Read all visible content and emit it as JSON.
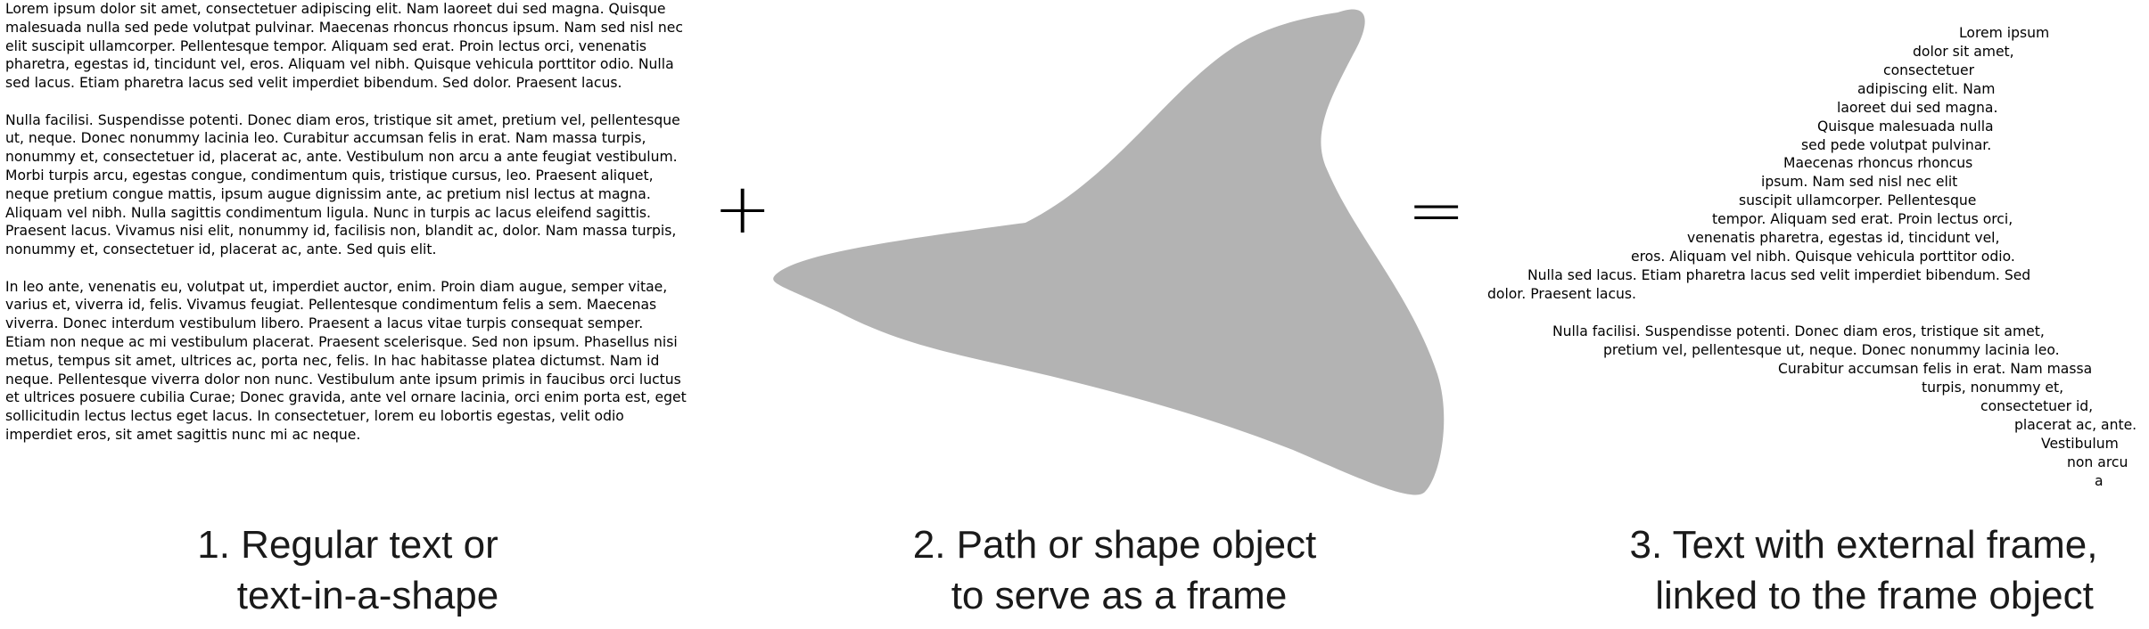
{
  "regular_text": {
    "paragraphs": [
      "Lorem ipsum dolor sit amet, consectetuer adipiscing elit. Nam laoreet dui sed magna. Quisque malesuada nulla sed pede volutpat pulvinar. Maecenas rhoncus rhoncus ipsum. Nam sed nisl nec elit suscipit ullamcorper. Pellentesque tempor. Aliquam sed erat. Proin lectus orci, venenatis pharetra, egestas id, tincidunt vel, eros. Aliquam vel nibh. Quisque vehicula porttitor odio. Nulla sed lacus. Etiam pharetra lacus sed velit imperdiet bibendum. Sed dolor. Praesent lacus.",
      "Nulla facilisi. Suspendisse potenti. Donec diam eros, tristique sit amet, pretium vel, pellentesque ut, neque. Donec nonummy lacinia leo. Curabitur accumsan felis in erat. Nam massa turpis, nonummy et, consectetuer id, placerat ac, ante. Vestibulum non arcu a ante feugiat vestibulum. Morbi turpis arcu, egestas congue, condimentum quis, tristique cursus, leo. Praesent aliquet, neque pretium congue mattis, ipsum augue dignissim ante, ac pretium nisl lectus at magna. Aliquam vel nibh. Nulla sagittis condimentum ligula. Nunc in turpis ac lacus eleifend sagittis. Praesent lacus. Vivamus nisi elit, nonummy id, facilisis non, blandit ac, dolor. Nam massa turpis, nonummy et, consectetuer id, placerat ac, ante. Sed quis elit.",
      "In leo ante, venenatis eu, volutpat ut, imperdiet auctor, enim. Proin diam augue, semper vitae, varius et, viverra id, felis. Vivamus feugiat. Pellentesque condimentum felis a sem. Maecenas viverra. Donec interdum vestibulum libero. Praesent a lacus vitae turpis consequat semper. Etiam non neque ac mi vestibulum placerat. Praesent scelerisque. Sed non ipsum. Phasellus nisi metus, tempus sit amet, ultrices ac, porta nec, felis. In hac habitasse platea dictumst. Nam id neque. Pellentesque viverra dolor non nunc. Vestibulum ante ipsum primis in faucibus orci luctus et ultrices posuere cubilia Curae; Donec gravida, ante vel ornare lacinia, orci enim porta est, eget sollicitudin lectus lectus eget lacus. In consectetuer, lorem eu lobortis egestas, velit odio imperdiet eros, sit amet sagittis nunc mi ac neque."
    ]
  },
  "operators": {
    "plus": "+",
    "equals": "="
  },
  "shape": {
    "fill": "#b3b3b3"
  },
  "captions": {
    "one": [
      "1. Regular text or",
      "text-in-a-shape"
    ],
    "two": [
      "2. Path or shape object",
      "to serve as a frame"
    ],
    "three": [
      "3. Text with external frame,",
      "linked to the frame object"
    ]
  },
  "framed_text": {
    "lines": [
      "Lorem ipsum",
      "dolor sit amet,",
      "consectetuer",
      "adipiscing elit. Nam",
      "laoreet dui sed magna.",
      "Quisque malesuada nulla",
      "sed pede volutpat pulvinar.",
      "Maecenas rhoncus rhoncus",
      "ipsum. Nam sed nisl nec elit",
      "suscipit ullamcorper. Pellentesque",
      "tempor. Aliquam sed erat. Proin lectus orci,",
      "venenatis pharetra, egestas id, tincidunt vel,",
      "eros. Aliquam vel nibh. Quisque vehicula porttitor odio.",
      "Nulla sed lacus. Etiam pharetra lacus sed velit imperdiet bibendum. Sed",
      "dolor. Praesent lacus.",
      "",
      "Nulla facilisi. Suspendisse potenti. Donec diam eros, tristique sit amet,",
      "pretium vel, pellentesque ut, neque. Donec nonummy lacinia leo.",
      "Curabitur accumsan felis in erat. Nam massa",
      "turpis, nonummy et,",
      "consectetuer id,",
      "placerat ac, ante.",
      "Vestibulum",
      "non arcu",
      "a"
    ]
  }
}
